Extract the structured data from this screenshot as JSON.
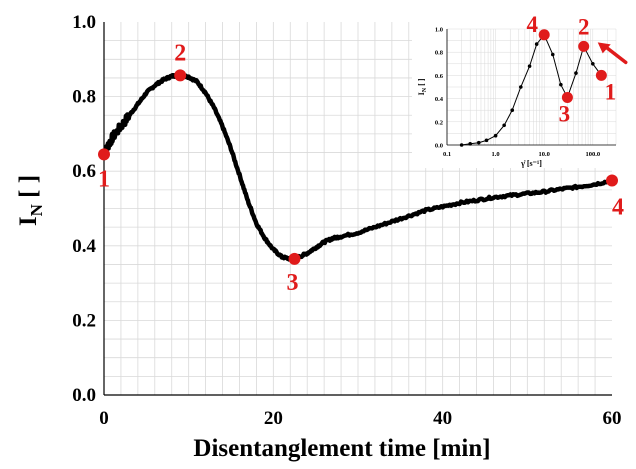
{
  "colors": {
    "line": "#000000",
    "marker": "#e01b1b",
    "grid": "#d9d9d9",
    "inset_marker": "#000000"
  },
  "chart_data": [
    {
      "type": "line",
      "xlabel": "Disentanglement time [min]",
      "ylabel": "I",
      "ylabel_sub": "N",
      "ylabel_suffix": " [ ]",
      "xlim": [
        0,
        60
      ],
      "ylim": [
        0,
        1.0
      ],
      "xticks": [
        0,
        20,
        40,
        60
      ],
      "xtick_labels": [
        "0",
        "20",
        "40",
        "60"
      ],
      "yticks": [
        0,
        0.2,
        0.4,
        0.6,
        0.8,
        1.0
      ],
      "ytick_labels": [
        "0.0",
        "0.2",
        "0.4",
        "0.6",
        "0.8",
        "1.0"
      ],
      "grid": true,
      "series": [
        {
          "x": [
            0,
            0.5,
            1,
            2,
            3,
            4,
            5,
            6,
            7,
            8,
            9,
            10,
            11,
            12,
            13,
            14,
            15,
            16,
            17,
            18,
            19,
            20,
            21,
            22,
            22.5,
            23,
            24,
            25,
            26,
            27,
            28,
            30,
            32,
            34,
            36,
            38,
            40,
            42,
            44,
            46,
            48,
            50,
            52,
            54,
            56,
            58,
            60
          ],
          "y": [
            0.64,
            0.67,
            0.69,
            0.72,
            0.75,
            0.78,
            0.81,
            0.83,
            0.845,
            0.855,
            0.857,
            0.853,
            0.84,
            0.81,
            0.77,
            0.72,
            0.66,
            0.59,
            0.52,
            0.46,
            0.42,
            0.39,
            0.37,
            0.365,
            0.366,
            0.37,
            0.38,
            0.395,
            0.41,
            0.42,
            0.425,
            0.435,
            0.45,
            0.465,
            0.48,
            0.495,
            0.505,
            0.515,
            0.522,
            0.53,
            0.535,
            0.54,
            0.545,
            0.552,
            0.558,
            0.565,
            0.575
          ]
        }
      ],
      "points": [
        {
          "label": "1",
          "x": 0,
          "y": 0.645
        },
        {
          "label": "2",
          "x": 9,
          "y": 0.857
        },
        {
          "label": "3",
          "x": 22.5,
          "y": 0.365
        },
        {
          "label": "4",
          "x": 60,
          "y": 0.575
        }
      ]
    },
    {
      "type": "line",
      "inset": true,
      "xlabel": "γ̇ [s⁻¹]",
      "ylabel": "I",
      "ylabel_sub": "N",
      "ylabel_suffix": " [ ]",
      "xscale": "log",
      "xlim": [
        0.1,
        300
      ],
      "ylim": [
        0,
        1.0
      ],
      "xticks": [
        0.1,
        1,
        10,
        100
      ],
      "xtick_labels": [
        "0.1",
        "1.0",
        "10.0",
        "100.0"
      ],
      "yticks": [
        0,
        0.2,
        0.4,
        0.6,
        0.8,
        1.0
      ],
      "ytick_labels": [
        "0.0",
        "0.2",
        "0.4",
        "0.6",
        "0.8",
        "1.0"
      ],
      "grid": true,
      "series": [
        {
          "x": [
            0.2,
            0.3,
            0.45,
            0.65,
            1.0,
            1.5,
            2.2,
            3.3,
            5.0,
            7.0,
            10.0,
            15.0,
            22.0,
            30.0,
            45.0,
            65.0,
            100.0,
            150.0
          ],
          "y": [
            0.0,
            0.01,
            0.02,
            0.04,
            0.08,
            0.17,
            0.3,
            0.5,
            0.68,
            0.87,
            0.95,
            0.78,
            0.52,
            0.41,
            0.62,
            0.85,
            0.7,
            0.6
          ]
        }
      ],
      "points": [
        {
          "label": "4",
          "x": 10.0,
          "y": 0.95
        },
        {
          "label": "3",
          "x": 30.0,
          "y": 0.41
        },
        {
          "label": "2",
          "x": 65.0,
          "y": 0.85
        },
        {
          "label": "1",
          "x": 150.0,
          "y": 0.6
        }
      ]
    }
  ]
}
